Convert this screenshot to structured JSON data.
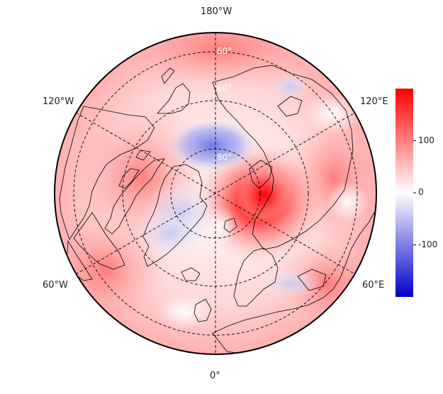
{
  "map": {
    "projection": "north-polar-stereographic",
    "longitude_labels": {
      "top": "180°W",
      "bottom": "0°",
      "upper_left": "120°W",
      "upper_right": "120°E",
      "lower_left": "60°W",
      "lower_right": "60°E"
    },
    "latitude_labels": [
      "60°",
      "60°",
      "80°"
    ],
    "gridlines": "dashed",
    "coastlines": true,
    "colormap": "bwr",
    "colors": {
      "low": "#0000cc",
      "mid": "#ffffff",
      "high": "#ff0000",
      "outline": "#000000"
    }
  },
  "colorbar": {
    "min": -200,
    "max": 200,
    "ticks": [
      {
        "value": 100,
        "label": "100"
      },
      {
        "value": 0,
        "label": "0"
      },
      {
        "value": -100,
        "label": "-100"
      }
    ],
    "placement": "right"
  }
}
